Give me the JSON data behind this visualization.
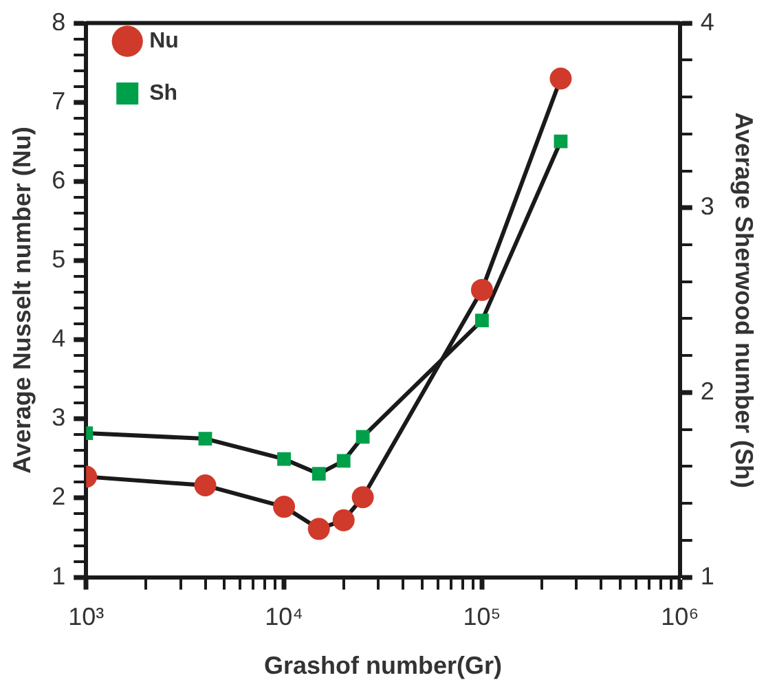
{
  "chart_data": {
    "type": "line",
    "xlabel": "Grashof number(Gr)",
    "ylabel": "Average Nusselt number (Nu)",
    "y2label": "Average Sherwood number (Sh)",
    "log": "x",
    "grid": false,
    "legend": "top left",
    "line_style": "solid",
    "xlim": [
      1000,
      1000000
    ],
    "xticks": [
      {
        "value": 1000,
        "label": "10³"
      },
      {
        "value": 2000,
        "label": null
      },
      {
        "value": 3000,
        "label": null
      },
      {
        "value": 4000,
        "label": null
      },
      {
        "value": 5000,
        "label": null
      },
      {
        "value": 6000,
        "label": null
      },
      {
        "value": 7000,
        "label": null
      },
      {
        "value": 8000,
        "label": null
      },
      {
        "value": 9000,
        "label": null
      },
      {
        "value": 10000,
        "label": "10⁴"
      },
      {
        "value": 20000,
        "label": null
      },
      {
        "value": 30000,
        "label": null
      },
      {
        "value": 40000,
        "label": null
      },
      {
        "value": 50000,
        "label": null
      },
      {
        "value": 60000,
        "label": null
      },
      {
        "value": 70000,
        "label": null
      },
      {
        "value": 80000,
        "label": null
      },
      {
        "value": 90000,
        "label": null
      },
      {
        "value": 100000,
        "label": "10⁵"
      },
      {
        "value": 200000,
        "label": null
      },
      {
        "value": 300000,
        "label": null
      },
      {
        "value": 400000,
        "label": null
      },
      {
        "value": 500000,
        "label": null
      },
      {
        "value": 600000,
        "label": null
      },
      {
        "value": 700000,
        "label": null
      },
      {
        "value": 800000,
        "label": null
      },
      {
        "value": 900000,
        "label": null
      },
      {
        "value": 1000000,
        "label": "10⁶"
      }
    ],
    "ylim": [
      1,
      8
    ],
    "yticks": [
      1,
      {
        "value": 1.2,
        "label": null
      },
      {
        "value": 1.4,
        "label": null
      },
      {
        "value": 1.6,
        "label": null
      },
      {
        "value": 1.8,
        "label": null
      },
      2,
      {
        "value": 2.2,
        "label": null
      },
      {
        "value": 2.4,
        "label": null
      },
      {
        "value": 2.6,
        "label": null
      },
      {
        "value": 2.8,
        "label": null
      },
      3,
      {
        "value": 3.2,
        "label": null
      },
      {
        "value": 3.4,
        "label": null
      },
      {
        "value": 3.6,
        "label": null
      },
      {
        "value": 3.8,
        "label": null
      },
      4,
      {
        "value": 4.2,
        "label": null
      },
      {
        "value": 4.4,
        "label": null
      },
      {
        "value": 4.6,
        "label": null
      },
      {
        "value": 4.8,
        "label": null
      },
      5,
      {
        "value": 5.2,
        "label": null
      },
      {
        "value": 5.4,
        "label": null
      },
      {
        "value": 5.6,
        "label": null
      },
      {
        "value": 5.8,
        "label": null
      },
      6,
      {
        "value": 6.2,
        "label": null
      },
      {
        "value": 6.4,
        "label": null
      },
      {
        "value": 6.6,
        "label": null
      },
      {
        "value": 6.8,
        "label": null
      },
      7,
      {
        "value": 7.2,
        "label": null
      },
      {
        "value": 7.4,
        "label": null
      },
      {
        "value": 7.6,
        "label": null
      },
      {
        "value": 7.8,
        "label": null
      },
      8
    ],
    "y2lim": [
      1,
      4
    ],
    "y2ticks": [
      1,
      {
        "value": 1.2,
        "label": null
      },
      {
        "value": 1.4,
        "label": null
      },
      {
        "value": 1.6,
        "label": null
      },
      {
        "value": 1.8,
        "label": null
      },
      2,
      {
        "value": 2.2,
        "label": null
      },
      {
        "value": 2.4,
        "label": null
      },
      {
        "value": 2.6,
        "label": null
      },
      {
        "value": 2.8,
        "label": null
      },
      3,
      {
        "value": 3.2,
        "label": null
      },
      {
        "value": 3.4,
        "label": null
      },
      {
        "value": 3.6,
        "label": null
      },
      {
        "value": 3.8,
        "label": null
      },
      4
    ],
    "x": [
      1000,
      4000,
      10000,
      15000,
      20000,
      25000,
      100000,
      250000
    ],
    "series": [
      {
        "name": "Nu",
        "color": "#d03a2a",
        "marker": "circle",
        "values": [
          2.27,
          2.16,
          1.89,
          1.61,
          1.72,
          2.01,
          4.63,
          7.3
        ]
      },
      {
        "name": "Sh",
        "color": "#00a04a",
        "marker": "square",
        "axis": "y2",
        "values": [
          1.78,
          1.75,
          1.64,
          1.56,
          1.63,
          1.76,
          2.39,
          3.36
        ]
      }
    ]
  }
}
